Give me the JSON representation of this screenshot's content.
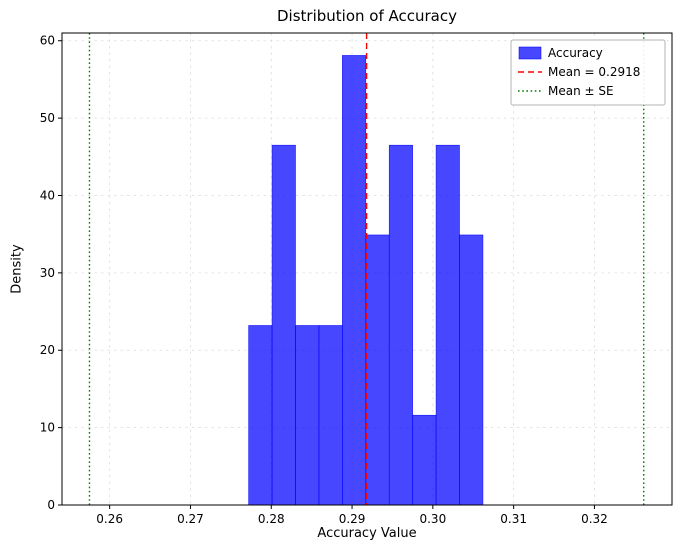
{
  "chart_data": {
    "type": "histogram",
    "title": "Distribution of Accuracy",
    "xlabel": "Accuracy Value",
    "ylabel": "Density",
    "xlim": [
      0.2541,
      0.3296
    ],
    "ylim": [
      0,
      61
    ],
    "xticks": [
      0.26,
      0.27,
      0.28,
      0.29,
      0.3,
      0.31,
      0.32
    ],
    "xtick_labels": [
      "0.26",
      "0.27",
      "0.28",
      "0.29",
      "0.30",
      "0.31",
      "0.32"
    ],
    "yticks": [
      0,
      10,
      20,
      30,
      40,
      50,
      60
    ],
    "ytick_labels": [
      "0",
      "10",
      "20",
      "30",
      "40",
      "50",
      "60"
    ],
    "bins": {
      "edges": [
        0.2772,
        0.2801,
        0.283,
        0.2859,
        0.2888,
        0.2917,
        0.2946,
        0.2975,
        0.3004,
        0.3033,
        0.3062
      ],
      "densities": [
        23.2,
        46.5,
        23.2,
        23.2,
        58.1,
        34.9,
        46.5,
        11.6,
        46.5,
        34.9
      ]
    },
    "bar_color": "#0000ff",
    "bar_alpha": 0.72,
    "mean_line": {
      "value": 0.2918,
      "color": "#ff0000",
      "style": "dashed",
      "label": "Mean = 0.2918"
    },
    "se_lines": {
      "values": [
        0.2575,
        0.3261
      ],
      "color": "#008000",
      "style": "dotted",
      "label": "Mean ± SE"
    },
    "grid": true,
    "grid_color": "#dcdcdc",
    "legend_position": "upper right",
    "legend": [
      {
        "type": "patch",
        "color": "#0000ff",
        "alpha": 0.72,
        "label": "Accuracy"
      },
      {
        "type": "line",
        "color": "#ff0000",
        "dash": "6 4",
        "label": "Mean = 0.2918"
      },
      {
        "type": "line",
        "color": "#008000",
        "dash": "1.6 2.6",
        "label": "Mean ± SE"
      }
    ]
  }
}
